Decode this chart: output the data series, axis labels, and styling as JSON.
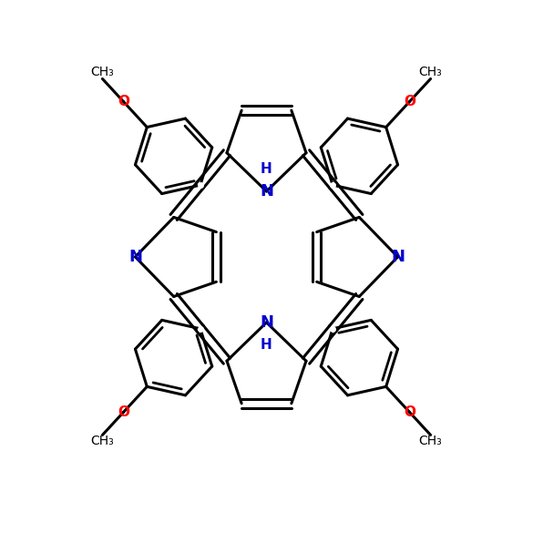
{
  "bg_color": "#ffffff",
  "bond_color": "#000000",
  "N_color": "#0000cd",
  "O_color": "#ff0000",
  "lw": 2.2,
  "lw_inner": 2.0,
  "figsize": [
    5.85,
    5.85
  ],
  "dpi": 100,
  "xlim": [
    -5.5,
    5.5
  ],
  "ylim": [
    -5.7,
    5.3
  ]
}
